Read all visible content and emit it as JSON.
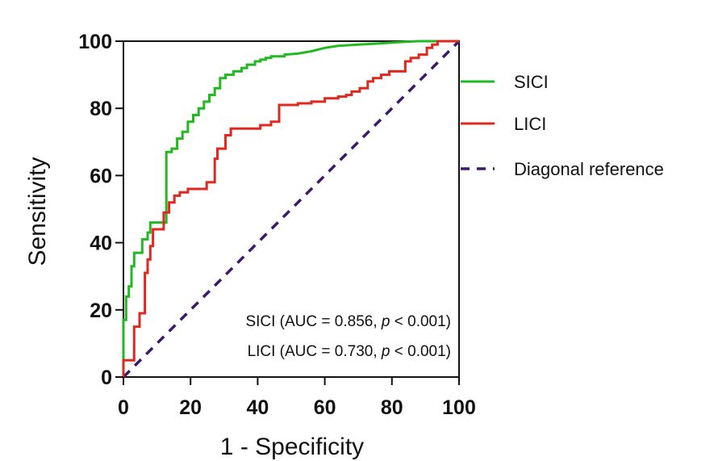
{
  "chart_data": {
    "type": "line",
    "title": "",
    "xlabel": "1 - Specificity",
    "ylabel": "Sensitivity",
    "xlim": [
      0,
      100
    ],
    "ylim": [
      0,
      100
    ],
    "xticks": [
      "0",
      "20",
      "40",
      "60",
      "80",
      "100"
    ],
    "yticks": [
      "0",
      "20",
      "40",
      "60",
      "80",
      "100"
    ],
    "grid": false,
    "legend_position": "right",
    "series": [
      {
        "name": "SICI",
        "color": "#22b822",
        "style": "solid",
        "x": [
          0,
          0,
          0.8,
          0.8,
          1.6,
          1.6,
          2.4,
          2.4,
          3.2,
          3.2,
          5.6,
          5.6,
          7.2,
          7.2,
          8,
          8,
          12.8,
          12.8,
          14.4,
          14.4,
          16,
          16,
          17.6,
          17.6,
          19.2,
          19.2,
          20.8,
          20.8,
          22.4,
          22.4,
          24,
          24,
          25.6,
          25.6,
          27.2,
          27.2,
          28.8,
          28.8,
          30.4,
          30.4,
          32.8,
          32.8,
          35.2,
          35.2,
          36.8,
          36.8,
          39.2,
          39.2,
          40.8,
          40.8,
          42.4,
          42.4,
          44,
          44,
          48,
          48,
          52,
          56,
          60,
          64,
          70,
          76,
          80,
          84,
          88,
          92,
          96,
          100
        ],
        "y": [
          0,
          17,
          17,
          24,
          24,
          27,
          27,
          33,
          33,
          37,
          37,
          41,
          41,
          43,
          43,
          46,
          46,
          67,
          67,
          68,
          68,
          71,
          71,
          73,
          73,
          76,
          76,
          78,
          78,
          80,
          80,
          82,
          82,
          84,
          84,
          86,
          86,
          89,
          89,
          90,
          90,
          91,
          91,
          92,
          92,
          93,
          93,
          94,
          94,
          94.5,
          94.5,
          95,
          95,
          95.5,
          95.5,
          96,
          96.3,
          97,
          98,
          98.6,
          99,
          99.3,
          99.6,
          99.8,
          100,
          100,
          100,
          100
        ]
      },
      {
        "name": "LICI",
        "color": "#e0281e",
        "style": "solid",
        "x": [
          0,
          0,
          3.2,
          3.2,
          4.8,
          4.8,
          6.4,
          6.4,
          7.2,
          7.2,
          8,
          8,
          8.8,
          8.8,
          12,
          12,
          13.6,
          13.6,
          15.2,
          15.2,
          16.8,
          16.8,
          19.2,
          19.2,
          24.8,
          24.8,
          27.2,
          27.2,
          28,
          28,
          30.4,
          30.4,
          32,
          32,
          40.8,
          40.8,
          44,
          44,
          46.4,
          46.4,
          52,
          52,
          56,
          56,
          60,
          60,
          64,
          64,
          66.4,
          66.4,
          68,
          68,
          70.4,
          70.4,
          72.8,
          72.8,
          74.4,
          74.4,
          76.8,
          76.8,
          79.2,
          79.2,
          84,
          84,
          85.6,
          85.6,
          88,
          88,
          90.4,
          90.4,
          92,
          92,
          93.6,
          93.6,
          100
        ],
        "y": [
          0,
          5,
          5,
          15,
          15,
          19,
          19,
          31,
          31,
          35,
          35,
          39,
          39,
          44,
          44,
          49,
          49,
          52,
          52,
          54,
          54,
          55,
          55,
          56,
          56,
          58,
          58,
          65,
          65,
          68,
          68,
          72,
          72,
          74,
          74,
          75,
          75,
          76,
          76,
          81,
          81,
          81.5,
          81.5,
          82,
          82,
          83,
          83,
          83.5,
          83.5,
          84,
          84,
          85,
          85,
          86,
          86,
          88,
          88,
          89,
          89,
          90,
          90,
          91,
          91,
          94,
          94,
          95,
          95,
          96,
          96,
          98,
          98,
          99,
          99,
          100,
          100
        ]
      },
      {
        "name": "Diagonal reference",
        "color": "#3b1a6e",
        "style": "dashed",
        "x": [
          0,
          100
        ],
        "y": [
          0,
          100
        ]
      }
    ],
    "annotations": [
      {
        "prefix": "SICI (AUC = 0.856, ",
        "italic": "p",
        "suffix": " < 0.001)"
      },
      {
        "prefix": "LICI (AUC = 0.730, ",
        "italic": "p",
        "suffix": " < 0.001)"
      }
    ]
  }
}
